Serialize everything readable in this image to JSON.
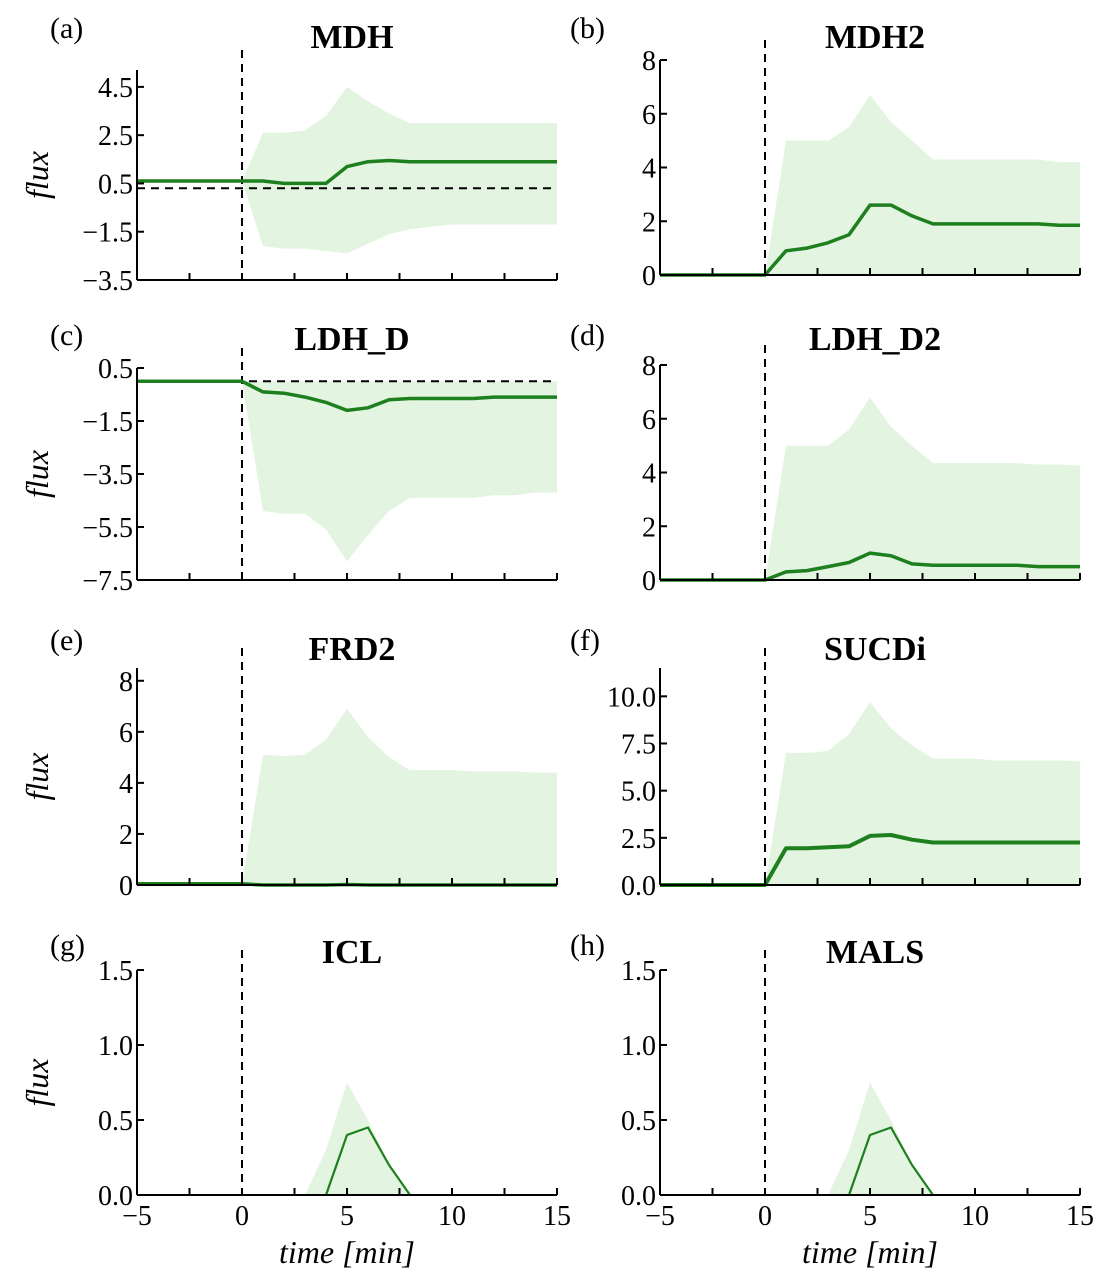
{
  "chart_data": [
    {
      "type": "line",
      "label": "(a)",
      "title": "MDH",
      "ylabel": "flux",
      "ylim": [
        -3.5,
        5.2
      ],
      "yticks": [
        -3.5,
        -1.5,
        0.5,
        2.5,
        4.5
      ],
      "ytick_labels": [
        "−3.5",
        "−1.5",
        "0.5",
        "2.5",
        "4.5"
      ],
      "xlim": [
        -5,
        15
      ],
      "show_xtick_labels": false,
      "hline": 0.3,
      "vline": 0,
      "line_width": 3.5,
      "series": [
        {
          "role": "line",
          "x": [
            -5,
            0,
            1,
            2,
            3,
            4,
            5,
            6,
            7,
            8,
            9,
            10,
            11,
            12,
            13,
            14,
            15
          ],
          "y": [
            0.6,
            0.6,
            0.6,
            0.5,
            0.5,
            0.5,
            1.2,
            1.4,
            1.45,
            1.4,
            1.4,
            1.4,
            1.4,
            1.4,
            1.4,
            1.4,
            1.4
          ]
        },
        {
          "role": "band-upper",
          "x": [
            -5,
            0,
            1,
            2,
            3,
            4,
            5,
            6,
            7,
            8,
            9,
            10,
            11,
            12,
            13,
            14,
            15
          ],
          "y": [
            0.6,
            0.6,
            2.6,
            2.6,
            2.7,
            3.3,
            4.5,
            3.9,
            3.4,
            3.0,
            3.0,
            3.0,
            3.0,
            3.0,
            3.0,
            3.0,
            3.0
          ]
        },
        {
          "role": "band-lower",
          "x": [
            -5,
            0,
            1,
            2,
            3,
            4,
            5,
            6,
            7,
            8,
            9,
            10,
            11,
            12,
            13,
            14,
            15
          ],
          "y": [
            0.6,
            0.6,
            -2.1,
            -2.2,
            -2.2,
            -2.3,
            -2.4,
            -2.0,
            -1.6,
            -1.4,
            -1.3,
            -1.2,
            -1.2,
            -1.2,
            -1.2,
            -1.2,
            -1.2
          ]
        }
      ]
    },
    {
      "type": "line",
      "label": "(b)",
      "title": "MDH2",
      "ylabel": "",
      "ylim": [
        0,
        8
      ],
      "yticks": [
        0,
        2,
        4,
        6,
        8
      ],
      "ytick_labels": [
        "0",
        "2",
        "4",
        "6",
        "8"
      ],
      "xlim": [
        -5,
        15
      ],
      "show_xtick_labels": false,
      "hline": null,
      "vline": 0,
      "line_width": 3.5,
      "series": [
        {
          "role": "line",
          "x": [
            -5,
            0,
            1,
            2,
            3,
            4,
            5,
            6,
            7,
            8,
            9,
            10,
            11,
            12,
            13,
            14,
            15
          ],
          "y": [
            0,
            0,
            0.9,
            1.0,
            1.2,
            1.5,
            2.6,
            2.6,
            2.2,
            1.9,
            1.9,
            1.9,
            1.9,
            1.9,
            1.9,
            1.85,
            1.85
          ]
        },
        {
          "role": "band-upper",
          "x": [
            -5,
            0,
            1,
            2,
            3,
            4,
            5,
            6,
            7,
            8,
            9,
            10,
            11,
            12,
            13,
            14,
            15
          ],
          "y": [
            0,
            0,
            5.0,
            5.0,
            5.0,
            5.5,
            6.7,
            5.7,
            5.0,
            4.3,
            4.3,
            4.3,
            4.3,
            4.3,
            4.3,
            4.2,
            4.2
          ]
        },
        {
          "role": "band-lower",
          "x": [
            -5,
            0,
            1,
            2,
            3,
            4,
            5,
            6,
            7,
            8,
            9,
            10,
            11,
            12,
            13,
            14,
            15
          ],
          "y": [
            0,
            0,
            0,
            0,
            0,
            0,
            0,
            0,
            0,
            0,
            0,
            0,
            0,
            0,
            0,
            0,
            0
          ]
        }
      ]
    },
    {
      "type": "line",
      "label": "(c)",
      "title": "LDH_D",
      "ylabel": "flux",
      "ylim": [
        -7.5,
        0.5
      ],
      "yticks": [
        -7.5,
        -5.5,
        -3.5,
        -1.5,
        0.5
      ],
      "ytick_labels": [
        "−7.5",
        "−5.5",
        "−3.5",
        "−1.5",
        "0.5"
      ],
      "xlim": [
        -5,
        15
      ],
      "show_xtick_labels": false,
      "hline": 0.0,
      "vline": 0,
      "line_width": 3.5,
      "series": [
        {
          "role": "line",
          "x": [
            -5,
            0,
            1,
            2,
            3,
            4,
            5,
            6,
            7,
            8,
            9,
            10,
            11,
            12,
            13,
            14,
            15
          ],
          "y": [
            0,
            0,
            -0.4,
            -0.45,
            -0.6,
            -0.8,
            -1.1,
            -1.0,
            -0.7,
            -0.65,
            -0.65,
            -0.65,
            -0.65,
            -0.6,
            -0.6,
            -0.6,
            -0.6
          ]
        },
        {
          "role": "band-upper",
          "x": [
            -5,
            0,
            1,
            2,
            3,
            4,
            5,
            6,
            7,
            8,
            9,
            10,
            11,
            12,
            13,
            14,
            15
          ],
          "y": [
            0,
            0,
            0,
            0,
            0,
            0,
            0,
            0,
            0,
            0,
            0,
            0,
            0,
            0,
            0,
            0,
            0
          ]
        },
        {
          "role": "band-lower",
          "x": [
            -5,
            0,
            1,
            2,
            3,
            4,
            5,
            6,
            7,
            8,
            9,
            10,
            11,
            12,
            13,
            14,
            15
          ],
          "y": [
            0,
            0,
            -4.9,
            -5.0,
            -5.0,
            -5.6,
            -6.8,
            -5.8,
            -4.9,
            -4.4,
            -4.4,
            -4.4,
            -4.4,
            -4.3,
            -4.3,
            -4.2,
            -4.2
          ]
        }
      ]
    },
    {
      "type": "line",
      "label": "(d)",
      "title": "LDH_D2",
      "ylabel": "",
      "ylim": [
        0,
        8
      ],
      "yticks": [
        0,
        2,
        4,
        6,
        8
      ],
      "ytick_labels": [
        "0",
        "2",
        "4",
        "6",
        "8"
      ],
      "xlim": [
        -5,
        15
      ],
      "show_xtick_labels": false,
      "hline": 0.0,
      "vline": 0,
      "line_width": 3.5,
      "series": [
        {
          "role": "line",
          "x": [
            -5,
            0,
            1,
            2,
            3,
            4,
            5,
            6,
            7,
            8,
            9,
            10,
            11,
            12,
            13,
            14,
            15
          ],
          "y": [
            0,
            0,
            0.3,
            0.35,
            0.5,
            0.65,
            1.0,
            0.9,
            0.6,
            0.55,
            0.55,
            0.55,
            0.55,
            0.55,
            0.5,
            0.5,
            0.5
          ]
        },
        {
          "role": "band-upper",
          "x": [
            -5,
            0,
            1,
            2,
            3,
            4,
            5,
            6,
            7,
            8,
            9,
            10,
            11,
            12,
            13,
            14,
            15
          ],
          "y": [
            0,
            0,
            5.0,
            5.0,
            5.0,
            5.6,
            6.8,
            5.7,
            5.0,
            4.35,
            4.35,
            4.35,
            4.35,
            4.35,
            4.3,
            4.3,
            4.25
          ]
        },
        {
          "role": "band-lower",
          "x": [
            -5,
            0,
            1,
            2,
            3,
            4,
            5,
            6,
            7,
            8,
            9,
            10,
            11,
            12,
            13,
            14,
            15
          ],
          "y": [
            0,
            0,
            0,
            0,
            0,
            0,
            0,
            0,
            0,
            0,
            0,
            0,
            0,
            0,
            0,
            0,
            0
          ]
        }
      ]
    },
    {
      "type": "line",
      "label": "(e)",
      "title": "FRD2",
      "ylabel": "flux",
      "ylim": [
        0,
        8.5
      ],
      "yticks": [
        0,
        2,
        4,
        6,
        8
      ],
      "ytick_labels": [
        "0",
        "2",
        "4",
        "6",
        "8"
      ],
      "xlim": [
        -5,
        15
      ],
      "show_xtick_labels": false,
      "hline": null,
      "vline": 0,
      "line_width": 3.5,
      "series": [
        {
          "role": "line",
          "x": [
            -5,
            0,
            1,
            2,
            3,
            4,
            5,
            6,
            7,
            8,
            9,
            10,
            11,
            12,
            13,
            14,
            15
          ],
          "y": [
            0.05,
            0.05,
            0,
            0,
            0,
            0,
            0.02,
            0,
            0,
            0,
            0,
            0,
            0,
            0,
            0,
            0,
            0
          ]
        },
        {
          "role": "band-upper",
          "x": [
            -5,
            0,
            1,
            2,
            3,
            4,
            5,
            6,
            7,
            8,
            9,
            10,
            11,
            12,
            13,
            14,
            15
          ],
          "y": [
            0.05,
            0.05,
            5.1,
            5.05,
            5.1,
            5.7,
            6.9,
            5.8,
            5.0,
            4.5,
            4.5,
            4.5,
            4.45,
            4.45,
            4.45,
            4.4,
            4.4
          ]
        },
        {
          "role": "band-lower",
          "x": [
            -5,
            0,
            1,
            2,
            3,
            4,
            5,
            6,
            7,
            8,
            9,
            10,
            11,
            12,
            13,
            14,
            15
          ],
          "y": [
            0,
            0,
            0,
            0,
            0,
            0,
            0,
            0,
            0,
            0,
            0,
            0,
            0,
            0,
            0,
            0,
            0
          ]
        }
      ]
    },
    {
      "type": "line",
      "label": "(f)",
      "title": "SUCDi",
      "ylabel": "",
      "ylim": [
        0,
        11.5
      ],
      "yticks": [
        0,
        2.5,
        5,
        7.5,
        10
      ],
      "ytick_labels": [
        "0.0",
        "2.5",
        "5.0",
        "7.5",
        "10.0"
      ],
      "xlim": [
        -5,
        15
      ],
      "show_xtick_labels": false,
      "hline": null,
      "vline": 0,
      "line_width": 4,
      "series": [
        {
          "role": "line",
          "x": [
            -5,
            0,
            1,
            2,
            3,
            4,
            5,
            6,
            7,
            8,
            9,
            10,
            11,
            12,
            13,
            14,
            15
          ],
          "y": [
            0,
            0,
            1.95,
            1.95,
            2.0,
            2.05,
            2.6,
            2.65,
            2.4,
            2.25,
            2.25,
            2.25,
            2.25,
            2.25,
            2.25,
            2.25,
            2.25
          ]
        },
        {
          "role": "band-upper",
          "x": [
            -5,
            0,
            1,
            2,
            3,
            4,
            5,
            6,
            7,
            8,
            9,
            10,
            11,
            12,
            13,
            14,
            15
          ],
          "y": [
            0,
            0,
            7.0,
            7.0,
            7.1,
            8.0,
            9.7,
            8.3,
            7.4,
            6.7,
            6.7,
            6.7,
            6.6,
            6.6,
            6.6,
            6.6,
            6.55
          ]
        },
        {
          "role": "band-lower",
          "x": [
            -5,
            0,
            1,
            2,
            3,
            4,
            5,
            6,
            7,
            8,
            9,
            10,
            11,
            12,
            13,
            14,
            15
          ],
          "y": [
            0,
            0,
            0,
            0,
            0,
            0,
            0,
            0,
            0,
            0,
            0,
            0,
            0,
            0,
            0,
            0,
            0
          ]
        }
      ]
    },
    {
      "type": "line",
      "label": "(g)",
      "title": "ICL",
      "ylabel": "flux",
      "ylim": [
        0,
        1.5
      ],
      "yticks": [
        0,
        0.5,
        1.0,
        1.5
      ],
      "ytick_labels": [
        "0.0",
        "0.5",
        "1.0",
        "1.5"
      ],
      "xlim": [
        -5,
        15
      ],
      "xticks": [
        -5,
        0,
        5,
        10,
        15
      ],
      "xtick_labels": [
        "−5",
        "0",
        "5",
        "10",
        "15"
      ],
      "show_xtick_labels": true,
      "xlabel": "time [min]",
      "hline": null,
      "vline": 0,
      "line_width": 2.2,
      "series": [
        {
          "role": "line",
          "x": [
            4,
            5,
            6,
            7,
            8
          ],
          "y": [
            0,
            0.4,
            0.45,
            0.2,
            0
          ]
        },
        {
          "role": "band-upper",
          "x": [
            3,
            4,
            5,
            6,
            7,
            8
          ],
          "y": [
            0,
            0.3,
            0.75,
            0.5,
            0.2,
            0
          ]
        },
        {
          "role": "band-lower",
          "x": [
            3,
            4,
            5,
            6,
            7,
            8
          ],
          "y": [
            0,
            0,
            0,
            0,
            0,
            0
          ]
        }
      ]
    },
    {
      "type": "line",
      "label": "(h)",
      "title": "MALS",
      "ylabel": "",
      "ylim": [
        0,
        1.5
      ],
      "yticks": [
        0,
        0.5,
        1.0,
        1.5
      ],
      "ytick_labels": [
        "0.0",
        "0.5",
        "1.0",
        "1.5"
      ],
      "xlim": [
        -5,
        15
      ],
      "xticks": [
        -5,
        0,
        5,
        10,
        15
      ],
      "xtick_labels": [
        "−5",
        "0",
        "5",
        "10",
        "15"
      ],
      "show_xtick_labels": true,
      "xlabel": "time [min]",
      "hline": null,
      "vline": 0,
      "line_width": 2.2,
      "series": [
        {
          "role": "line",
          "x": [
            4,
            5,
            6,
            7,
            8
          ],
          "y": [
            0,
            0.4,
            0.45,
            0.2,
            0
          ]
        },
        {
          "role": "band-upper",
          "x": [
            3,
            4,
            5,
            6,
            7,
            8
          ],
          "y": [
            0,
            0.3,
            0.75,
            0.5,
            0.2,
            0
          ]
        },
        {
          "role": "band-lower",
          "x": [
            3,
            4,
            5,
            6,
            7,
            8
          ],
          "y": [
            0,
            0,
            0,
            0,
            0,
            0
          ]
        }
      ]
    }
  ],
  "colors": {
    "line": "#1e7f1e",
    "band": "#e3f5e0",
    "axis": "#000000"
  }
}
